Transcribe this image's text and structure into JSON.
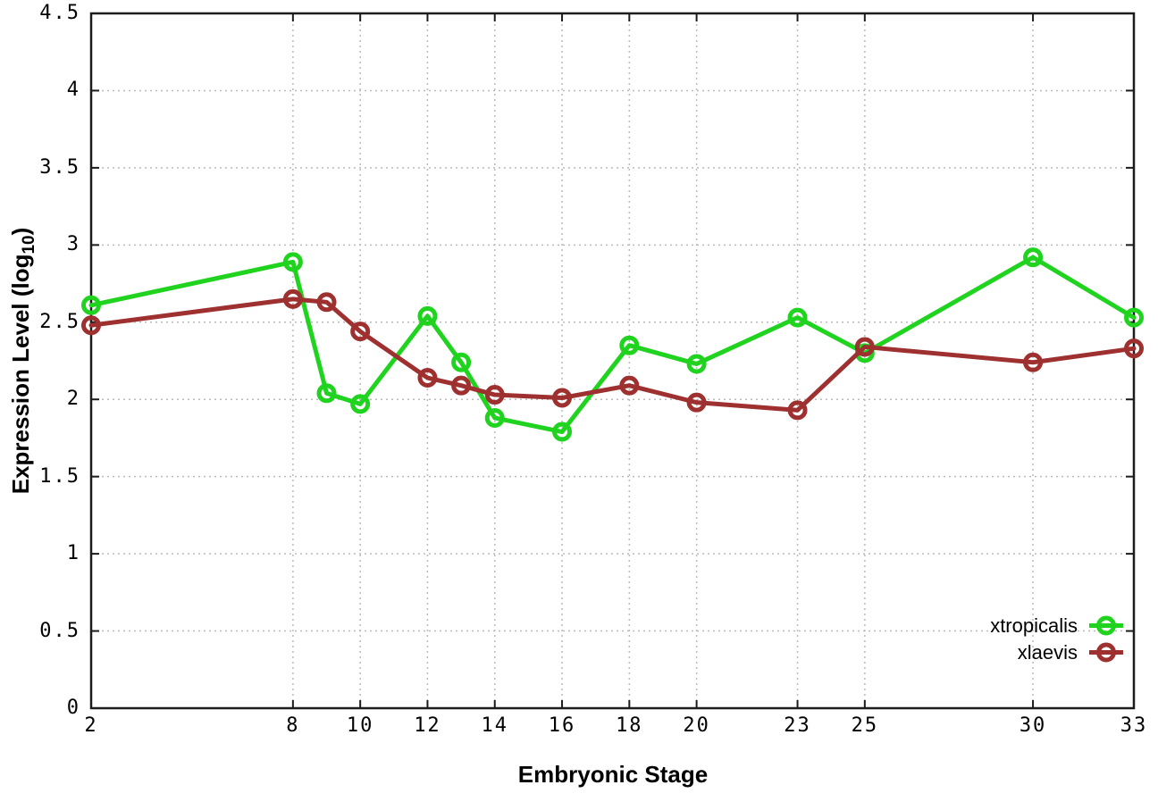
{
  "labels": {
    "xlabel": "Embryonic Stage",
    "ylabel_prefix": "Expression Level (log",
    "ylabel_sub": "10",
    "ylabel_suffix": ")"
  },
  "chart_data": {
    "type": "line",
    "title": "",
    "xlabel": "Embryonic Stage",
    "ylabel": "Expression Level (log10)",
    "xlim": [
      2,
      33
    ],
    "ylim": [
      0,
      4.5
    ],
    "grid": true,
    "legend_position": "inside-bottom-right",
    "x_tick_labels": [
      "2",
      "8",
      "10",
      "12",
      "14",
      "16",
      "18",
      "20",
      "23",
      "25",
      "30",
      "33"
    ],
    "x_tick_values": [
      2,
      8,
      10,
      12,
      14,
      16,
      18,
      20,
      23,
      25,
      30,
      33
    ],
    "y_tick_labels": [
      "0",
      "0.5",
      "1",
      "1.5",
      "2",
      "2.5",
      "3",
      "3.5",
      "4",
      "4.5"
    ],
    "y_tick_values": [
      0,
      0.5,
      1,
      1.5,
      2,
      2.5,
      3,
      3.5,
      4,
      4.5
    ],
    "x": [
      2,
      8,
      9,
      10,
      12,
      13,
      14,
      16,
      18,
      20,
      23,
      25,
      30,
      33
    ],
    "series": [
      {
        "name": "xtropicalis",
        "color": "#1fd31f",
        "marker": "open-circle",
        "values": [
          2.61,
          2.89,
          2.04,
          1.97,
          2.54,
          2.24,
          1.88,
          1.79,
          2.35,
          2.23,
          2.53,
          2.3,
          2.92,
          2.53
        ]
      },
      {
        "name": "xlaevis",
        "color": "#9e3030",
        "marker": "open-circle",
        "values": [
          2.48,
          2.65,
          2.63,
          2.44,
          2.14,
          2.09,
          2.03,
          2.01,
          2.09,
          1.98,
          1.93,
          2.34,
          2.24,
          2.33
        ]
      }
    ]
  },
  "style": {
    "background": "#ffffff",
    "grid_color": "#bbbbbb",
    "axis_color": "#1c1c1c",
    "text_color": "#000000"
  }
}
